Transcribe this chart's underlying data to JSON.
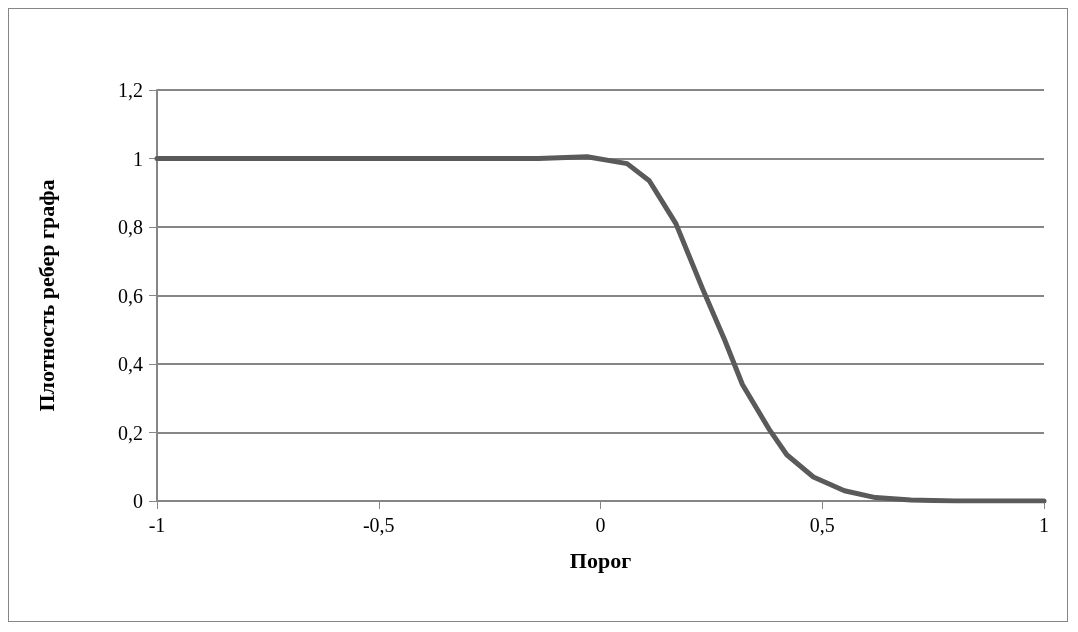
{
  "chart_data": {
    "type": "line",
    "xlabel": "Порог",
    "ylabel": "Плотность ребер графа",
    "xlim": [
      -1,
      1
    ],
    "xticks": [
      -1,
      {
        "value": -0.5,
        "label": "-0,5"
      },
      0,
      {
        "value": 0.5,
        "label": "0,5"
      },
      1
    ],
    "ylim": [
      0,
      1.2
    ],
    "yticks": [
      0,
      {
        "value": 0.2,
        "label": "0,2"
      },
      {
        "value": 0.4,
        "label": "0,4"
      },
      {
        "value": 0.6,
        "label": "0,6"
      },
      {
        "value": 0.8,
        "label": "0,8"
      },
      1,
      {
        "value": 1.2,
        "label": "1,2"
      }
    ],
    "grid": "y",
    "marker": "none",
    "line_style": "solid",
    "series": [
      {
        "color": "#5a5a5a",
        "x": [
          -1,
          -0.5,
          -0.14,
          -0.03,
          0.06,
          0.11,
          0.17,
          0.23,
          0.28,
          0.32,
          0.38,
          0.42,
          0.48,
          0.55,
          0.62,
          0.7,
          0.8,
          1
        ],
        "values": [
          1,
          1,
          1,
          1.005,
          0.985,
          0.935,
          0.81,
          0.62,
          0.47,
          0.34,
          0.21,
          0.135,
          0.07,
          0.03,
          0.01,
          0.003,
          0,
          0
        ]
      }
    ]
  }
}
